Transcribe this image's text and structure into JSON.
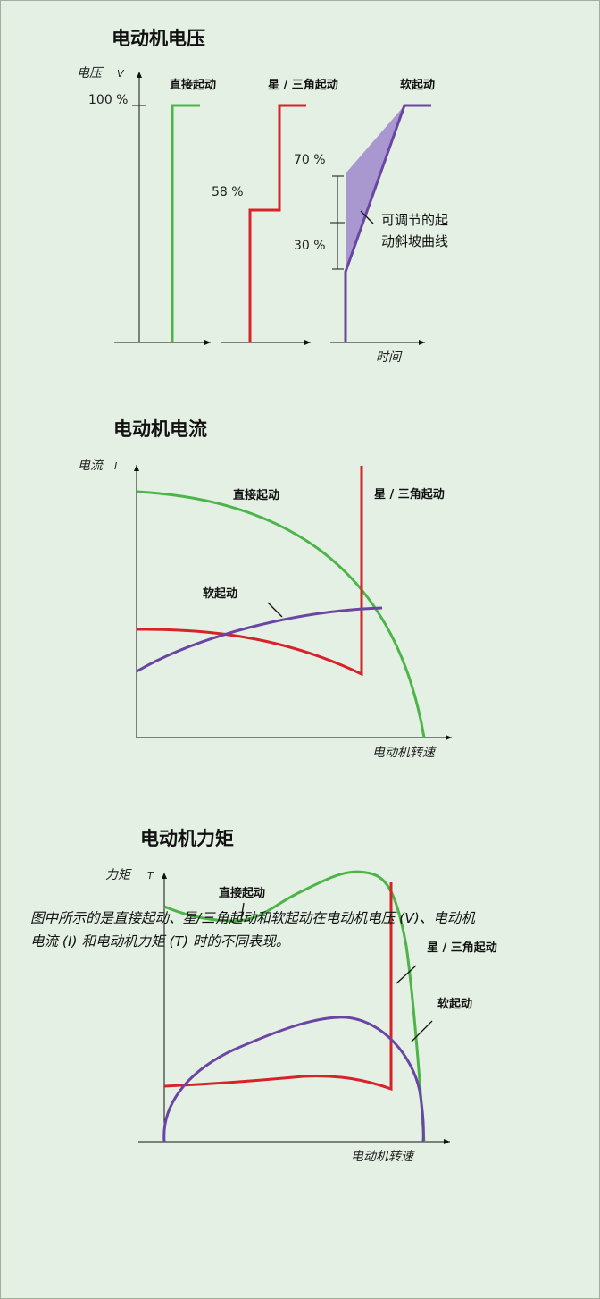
{
  "colors": {
    "background": "#e4f0e3",
    "direct": "#4db449",
    "star_delta": "#d7222a",
    "soft": "#6a45a3",
    "soft_band": "#a898cf"
  },
  "voltage": {
    "title": "电动机电压",
    "y_label": "电压",
    "y_symbol": "V",
    "x_label": "时间",
    "direct_label": "直接起动",
    "star_delta_label": "星 / 三角起动",
    "soft_label": "软起动",
    "pct_100": "100 %",
    "pct_58": "58 %",
    "pct_70": "70 %",
    "pct_30": "30 %",
    "ramp_note_1": "可调节的起",
    "ramp_note_2": "动斜坡曲线"
  },
  "current": {
    "title": "电动机电流",
    "y_label": "电流",
    "y_symbol": "I",
    "x_label": "电动机转速",
    "direct_label": "直接起动",
    "star_delta_label": "星 / 三角起动",
    "soft_label": "软起动"
  },
  "torque": {
    "title": "电动机力矩",
    "y_label": "力矩",
    "y_symbol": "T",
    "x_label": "电动机转速",
    "direct_label": "直接起动",
    "star_delta_label": "星 / 三角起动",
    "soft_label": "软起动"
  },
  "caption": {
    "line1": "图中所示的是直接起动、星/三角起动和软起动在电动机电压 (V)、电动机",
    "line2": "电流 (I) 和电动机力矩 (T) 时的不同表现。"
  }
}
